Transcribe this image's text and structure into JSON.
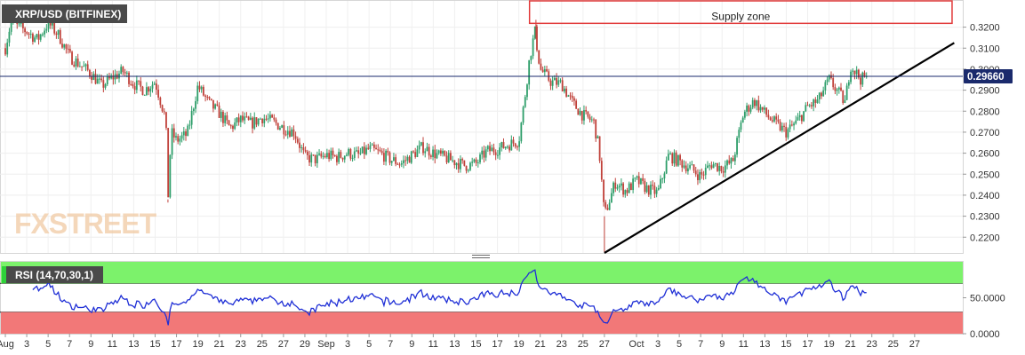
{
  "colors": {
    "up": "#2e9e6a",
    "down": "#c0413a",
    "rsi_line": "#1f2fd6",
    "overbought_fill": "#7cf26b",
    "oversold_fill": "#f27878",
    "trendline": "#000000",
    "price_line": "#1a2a6c",
    "supply_zone": "#e23b3b",
    "label_bg": "#4a4a4a"
  },
  "chart_data": [
    {
      "type": "candlestick",
      "title": "XRP/USD (BITFINEX)",
      "ylim": [
        0.2125,
        0.3325
      ],
      "y_ticks": [
        "0.2200",
        "0.2300",
        "0.2400",
        "0.2500",
        "0.2600",
        "0.2700",
        "0.2800",
        "0.2900",
        "0.3000",
        "0.3100",
        "0.3200"
      ],
      "y_tick_values": [
        0.22,
        0.23,
        0.24,
        0.25,
        0.26,
        0.27,
        0.28,
        0.29,
        0.3,
        0.31,
        0.32
      ],
      "last_price": 0.2966,
      "last_price_label": "0.29660",
      "watermark": "FXSTREET",
      "supply_zone": {
        "label": "Supply zone",
        "x_range": [
          49,
          88.5
        ],
        "price_range": [
          0.3218,
          0.3325
        ]
      },
      "trendline": {
        "from": [
          56,
          0.2125
        ],
        "to": [
          88.7,
          0.3125
        ]
      },
      "price_series": {
        "x": [
          0,
          0.5,
          2,
          3,
          4,
          5,
          6,
          7,
          8,
          9,
          10,
          11,
          12,
          13,
          14,
          15,
          15.2,
          15.5,
          16,
          17,
          18,
          19,
          20,
          21,
          22,
          23,
          24,
          25,
          26,
          27,
          28,
          29,
          30,
          31,
          32,
          33,
          34,
          35,
          36,
          37,
          38,
          39,
          40,
          41,
          42,
          43,
          44,
          45,
          46,
          47,
          48,
          48.5,
          49,
          49.5,
          50,
          51,
          52,
          53,
          54,
          55,
          55.5,
          56,
          57,
          58,
          59,
          60,
          61,
          62,
          63,
          64,
          65,
          66,
          67,
          68,
          69,
          70,
          71,
          72,
          73,
          74,
          75,
          76,
          77,
          78,
          78.5,
          79,
          80,
          80.5
        ],
        "y": [
          0.31,
          0.322,
          0.318,
          0.314,
          0.322,
          0.316,
          0.306,
          0.302,
          0.298,
          0.292,
          0.296,
          0.299,
          0.293,
          0.29,
          0.294,
          0.276,
          0.238,
          0.27,
          0.266,
          0.269,
          0.292,
          0.284,
          0.279,
          0.272,
          0.276,
          0.274,
          0.277,
          0.275,
          0.272,
          0.27,
          0.258,
          0.257,
          0.259,
          0.258,
          0.26,
          0.259,
          0.262,
          0.26,
          0.257,
          0.255,
          0.259,
          0.263,
          0.26,
          0.258,
          0.256,
          0.254,
          0.255,
          0.261,
          0.262,
          0.264,
          0.266,
          0.284,
          0.305,
          0.318,
          0.3,
          0.294,
          0.293,
          0.284,
          0.278,
          0.275,
          0.262,
          0.23,
          0.246,
          0.242,
          0.247,
          0.243,
          0.241,
          0.259,
          0.256,
          0.253,
          0.249,
          0.255,
          0.253,
          0.256,
          0.279,
          0.285,
          0.279,
          0.274,
          0.27,
          0.275,
          0.282,
          0.285,
          0.295,
          0.288,
          0.284,
          0.302,
          0.295,
          0.2966
        ]
      },
      "candle_count": 440,
      "candle_seed": 7
    },
    {
      "type": "line",
      "title": "RSI (14,70,30,1)",
      "ylim": [
        0,
        100
      ],
      "y_ticks": [
        "0.0000",
        "50.0000"
      ],
      "y_tick_values": [
        0,
        50
      ],
      "bands": {
        "overbought": 70,
        "oversold": 30
      },
      "series": [
        {
          "name": "RSI",
          "generated_from_price": true
        }
      ]
    }
  ],
  "x_axis": {
    "domain": [
      -0.5,
      89.5
    ],
    "ticks": [
      {
        "x": 0,
        "label": "Aug"
      },
      {
        "x": 2,
        "label": "3"
      },
      {
        "x": 4,
        "label": "5"
      },
      {
        "x": 6,
        "label": "7"
      },
      {
        "x": 8,
        "label": "9"
      },
      {
        "x": 10,
        "label": "11"
      },
      {
        "x": 12,
        "label": "13"
      },
      {
        "x": 14,
        "label": "15"
      },
      {
        "x": 16,
        "label": "17"
      },
      {
        "x": 18,
        "label": "19"
      },
      {
        "x": 20,
        "label": "21"
      },
      {
        "x": 22,
        "label": "23"
      },
      {
        "x": 24,
        "label": "25"
      },
      {
        "x": 26,
        "label": "27"
      },
      {
        "x": 28,
        "label": "29"
      },
      {
        "x": 30,
        "label": "Sep"
      },
      {
        "x": 32,
        "label": "3"
      },
      {
        "x": 34,
        "label": "5"
      },
      {
        "x": 36,
        "label": "7"
      },
      {
        "x": 38,
        "label": "9"
      },
      {
        "x": 40,
        "label": "11"
      },
      {
        "x": 42,
        "label": "13"
      },
      {
        "x": 44,
        "label": "15"
      },
      {
        "x": 46,
        "label": "17"
      },
      {
        "x": 48,
        "label": "19"
      },
      {
        "x": 50,
        "label": "21"
      },
      {
        "x": 52,
        "label": "23"
      },
      {
        "x": 54,
        "label": "25"
      },
      {
        "x": 56,
        "label": "27"
      },
      {
        "x": 59,
        "label": "Oct"
      },
      {
        "x": 61,
        "label": "3"
      },
      {
        "x": 63,
        "label": "5"
      },
      {
        "x": 65,
        "label": "7"
      },
      {
        "x": 67,
        "label": "9"
      },
      {
        "x": 69,
        "label": "11"
      },
      {
        "x": 71,
        "label": "13"
      },
      {
        "x": 73,
        "label": "15"
      },
      {
        "x": 75,
        "label": "17"
      },
      {
        "x": 77,
        "label": "19"
      },
      {
        "x": 79,
        "label": "21"
      },
      {
        "x": 81,
        "label": "23"
      },
      {
        "x": 83,
        "label": "25"
      },
      {
        "x": 85,
        "label": "27"
      }
    ]
  }
}
